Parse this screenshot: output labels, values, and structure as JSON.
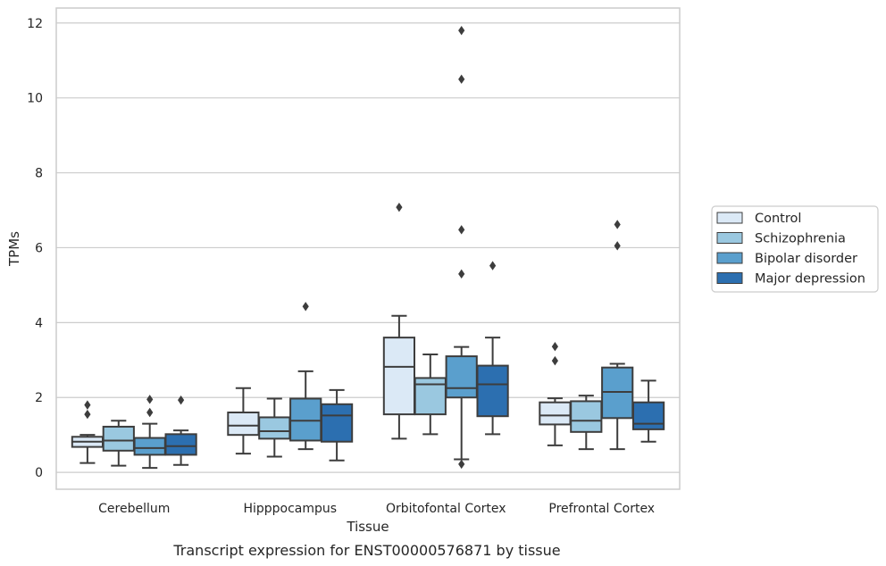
{
  "chart_data": {
    "type": "box",
    "title": "",
    "caption": "Transcript expression for ENST00000576871 by tissue",
    "xlabel": "Tissue",
    "ylabel": "TPMs",
    "ylim": [
      -0.45,
      12.4
    ],
    "yticks": [
      0,
      2,
      4,
      6,
      8,
      10,
      12
    ],
    "grid": "horizontal",
    "legend_position": "right",
    "categories": [
      "Cerebellum",
      "Hipppocampus",
      "Orbitofontal Cortex",
      "Prefrontal Cortex"
    ],
    "series": [
      {
        "name": "Control",
        "color": "#dbe9f6",
        "boxes": [
          {
            "whislo": 0.25,
            "q1": 0.68,
            "med": 0.82,
            "q3": 0.95,
            "whishi": 1.0,
            "fliers": [
              1.55,
              1.8
            ]
          },
          {
            "whislo": 0.5,
            "q1": 1.0,
            "med": 1.25,
            "q3": 1.6,
            "whishi": 2.25,
            "fliers": []
          },
          {
            "whislo": 0.9,
            "q1": 1.55,
            "med": 2.82,
            "q3": 3.6,
            "whishi": 4.18,
            "fliers": [
              7.08
            ]
          },
          {
            "whislo": 0.72,
            "q1": 1.28,
            "med": 1.52,
            "q3": 1.87,
            "whishi": 1.98,
            "fliers": [
              2.98,
              3.36
            ]
          }
        ]
      },
      {
        "name": "Schizophrenia",
        "color": "#9ac8e0",
        "boxes": [
          {
            "whislo": 0.18,
            "q1": 0.58,
            "med": 0.85,
            "q3": 1.22,
            "whishi": 1.38,
            "fliers": []
          },
          {
            "whislo": 0.42,
            "q1": 0.9,
            "med": 1.1,
            "q3": 1.47,
            "whishi": 1.97,
            "fliers": []
          },
          {
            "whislo": 1.02,
            "q1": 1.55,
            "med": 2.35,
            "q3": 2.52,
            "whishi": 3.15,
            "fliers": []
          },
          {
            "whislo": 0.62,
            "q1": 1.08,
            "med": 1.38,
            "q3": 1.9,
            "whishi": 2.05,
            "fliers": []
          }
        ]
      },
      {
        "name": "Bipolar disorder",
        "color": "#5a9fcd",
        "boxes": [
          {
            "whislo": 0.12,
            "q1": 0.47,
            "med": 0.65,
            "q3": 0.92,
            "whishi": 1.3,
            "fliers": [
              1.6,
              1.95
            ]
          },
          {
            "whislo": 0.62,
            "q1": 0.85,
            "med": 1.38,
            "q3": 1.97,
            "whishi": 2.7,
            "fliers": [
              4.43
            ]
          },
          {
            "whislo": 0.35,
            "q1": 2.0,
            "med": 2.25,
            "q3": 3.1,
            "whishi": 3.35,
            "fliers": [
              0.22,
              5.3,
              6.48,
              10.5,
              11.8
            ]
          },
          {
            "whislo": 0.62,
            "q1": 1.45,
            "med": 2.15,
            "q3": 2.8,
            "whishi": 2.9,
            "fliers": [
              6.05,
              6.62
            ]
          }
        ]
      },
      {
        "name": "Major depression",
        "color": "#2c6fb0",
        "boxes": [
          {
            "whislo": 0.2,
            "q1": 0.47,
            "med": 0.7,
            "q3": 1.02,
            "whishi": 1.12,
            "fliers": [
              1.93
            ]
          },
          {
            "whislo": 0.32,
            "q1": 0.82,
            "med": 1.52,
            "q3": 1.82,
            "whishi": 2.2,
            "fliers": []
          },
          {
            "whislo": 1.02,
            "q1": 1.5,
            "med": 2.35,
            "q3": 2.85,
            "whishi": 3.6,
            "fliers": [
              5.52
            ]
          },
          {
            "whislo": 0.82,
            "q1": 1.15,
            "med": 1.3,
            "q3": 1.87,
            "whishi": 2.45,
            "fliers": []
          }
        ]
      }
    ]
  }
}
